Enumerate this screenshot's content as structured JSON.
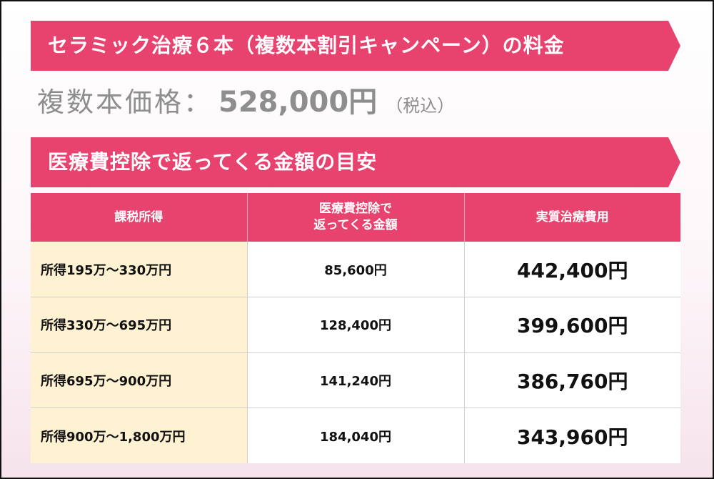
{
  "banner_fee": "セラミック治療６本（複数本割引キャンペーン）の料金",
  "price": {
    "label": "複数本価格：",
    "value": "528,000円",
    "tax_note": "（税込）"
  },
  "banner_refund": "医療費控除で返ってくる金額の目安",
  "table": {
    "headers": {
      "income": "課税所得",
      "refund_line1": "医療費控除で",
      "refund_line2": "返ってくる金額",
      "actual": "実質治療費用"
    },
    "rows": [
      {
        "income": "所得195万～330万円",
        "refund": "85,600円",
        "actual": "442,400円"
      },
      {
        "income": "所得330万～695万円",
        "refund": "128,400円",
        "actual": "399,600円"
      },
      {
        "income": "所得695万～900万円",
        "refund": "141,240円",
        "actual": "386,760円"
      },
      {
        "income": "所得900万～1,800万円",
        "refund": "184,040円",
        "actual": "343,960円"
      }
    ]
  },
  "colors": {
    "accent_pink": "#e8426e",
    "income_cell_bg": "#fff2d2",
    "price_gray": "#8e8e8e"
  }
}
